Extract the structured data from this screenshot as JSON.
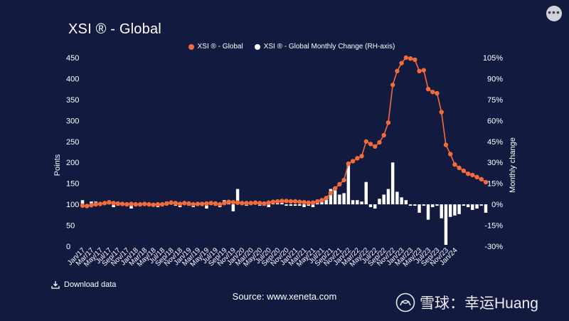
{
  "title": "XSI ® - Global",
  "menu_glyph": "•••",
  "legend": {
    "line_label": "XSI ® - Global",
    "bar_label": "XSI ® - Global Monthly Change (RH-axis)"
  },
  "footer": {
    "download_label": "Download data",
    "source": "Source: www.xeneta.com"
  },
  "watermark": {
    "text": "雪球：幸运Huang"
  },
  "colors": {
    "background": "#121a40",
    "line": "#f26b3a",
    "bars": "#ffffff",
    "grid": "#3a4266"
  },
  "chart_data": {
    "type": "line",
    "title": "XSI ® - Global",
    "ylabel": "Points",
    "y2label": "Monthly change",
    "ylim": [
      0,
      450
    ],
    "y2lim": [
      -30,
      105
    ],
    "yticks": [
      "0",
      "50",
      "100",
      "150",
      "200",
      "250",
      "300",
      "350",
      "400",
      "450"
    ],
    "y2ticks": [
      "-30%",
      "-15%",
      "0%",
      "15%",
      "30%",
      "45%",
      "60%",
      "75%",
      "90%",
      "105%"
    ],
    "x_labels": [
      "Jan/17",
      "Mar/17",
      "May/17",
      "Jul/17",
      "Sep/17",
      "Nov/17",
      "Jan/18",
      "Mar/18",
      "May/18",
      "Jul/18",
      "Sep/18",
      "Nov/18",
      "Jan/19",
      "Mar/19",
      "May/19",
      "Jul/19",
      "Sep/19",
      "Nov/19",
      "Jan/20",
      "Mar/20",
      "May/20",
      "Jul/20",
      "Sep/20",
      "Nov/20",
      "Jan/21",
      "Mar/21",
      "May/21",
      "Jul/21",
      "Sep/21",
      "Nov/21",
      "Jan/22",
      "Mar/22",
      "May/22",
      "Jul/22",
      "Sep/22",
      "Nov/22",
      "Jan/23",
      "Mar/23",
      "May/23",
      "Jul/23",
      "Sep/23",
      "Nov/23",
      "Jan/24"
    ],
    "legend_position": "top-center",
    "grid": false,
    "series": [
      {
        "name": "XSI ® - Global",
        "axis": "left",
        "kind": "line",
        "values": [
          97,
          96,
          98,
          100,
          101,
          103,
          105,
          103,
          102,
          101,
          100,
          101,
          100,
          100,
          101,
          100,
          99,
          100,
          100,
          102,
          104,
          103,
          101,
          103,
          102,
          100,
          101,
          101,
          102,
          103,
          102,
          100,
          103,
          106,
          105,
          104,
          103,
          103,
          103,
          104,
          103,
          102,
          104,
          106,
          107,
          108,
          108,
          107,
          107,
          106,
          105,
          104,
          104,
          107,
          110,
          115,
          127,
          138,
          148,
          158,
          197,
          203,
          210,
          215,
          250,
          244,
          238,
          248,
          265,
          295,
          385,
          418,
          437,
          450,
          448,
          445,
          418,
          420,
          375,
          368,
          365,
          320,
          242,
          220,
          195,
          187,
          180,
          173,
          170,
          165,
          160,
          153
        ]
      },
      {
        "name": "XSI ® - Global Monthly Change (RH-axis)",
        "axis": "right",
        "kind": "bar",
        "values": [
          3,
          -1,
          2,
          2,
          1,
          2,
          2,
          -2,
          -1,
          -1,
          -1,
          -3,
          -1,
          -1,
          1,
          -1,
          -1,
          -2,
          -1,
          2,
          2,
          -1,
          -2,
          2,
          -1,
          -2,
          1,
          -1,
          -3,
          1,
          -1,
          -2,
          3,
          3,
          -5,
          11,
          2,
          -1,
          1,
          1,
          -1,
          -1,
          -2,
          2,
          1,
          1,
          -1,
          -1,
          -1,
          -1,
          -2,
          -1,
          -2,
          3,
          3,
          5,
          11,
          10,
          7,
          8,
          28,
          3,
          3,
          2,
          16,
          -2,
          -3,
          4,
          7,
          11,
          30,
          9,
          5,
          3,
          -1,
          -1,
          -6,
          -1,
          -11,
          -2,
          -1,
          -10,
          -29,
          -9,
          -8,
          -7,
          -1,
          -2,
          -4,
          -3,
          -1,
          -6
        ]
      }
    ]
  }
}
